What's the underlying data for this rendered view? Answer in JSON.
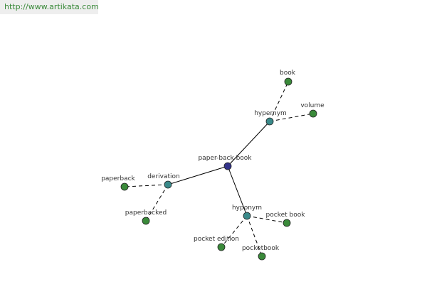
{
  "header": {
    "url": "http://www.artikata.com"
  },
  "nodes": [
    {
      "label": "paper-back book"
    },
    {
      "label": "hypernym"
    },
    {
      "label": "book"
    },
    {
      "label": "volume"
    },
    {
      "label": "derivation"
    },
    {
      "label": "paperback"
    },
    {
      "label": "paperbacked"
    },
    {
      "label": "hyponym"
    },
    {
      "label": "pocket book"
    },
    {
      "label": "pocket edition"
    },
    {
      "label": "pocketbook"
    }
  ]
}
